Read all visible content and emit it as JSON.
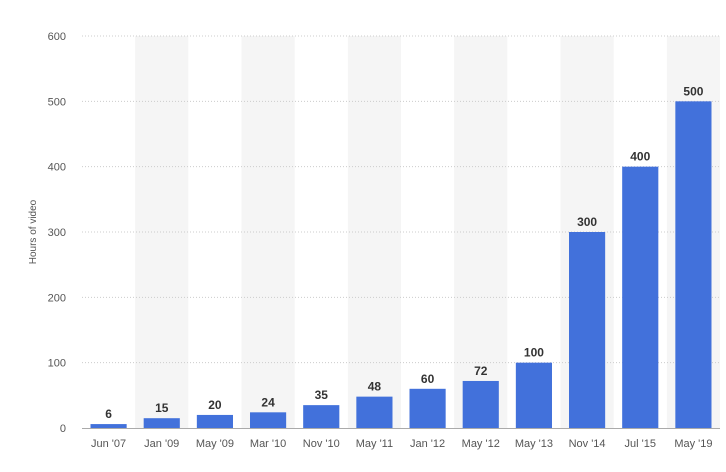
{
  "chart_data": {
    "type": "bar",
    "categories": [
      "Jun '07",
      "Jan '09",
      "May '09",
      "Mar '10",
      "Nov '10",
      "May '11",
      "Jan '12",
      "May '12",
      "May '13",
      "Nov '14",
      "Jul '15",
      "May '19"
    ],
    "values": [
      6,
      15,
      20,
      24,
      35,
      48,
      60,
      72,
      100,
      300,
      400,
      500
    ],
    "title": "",
    "xlabel": "",
    "ylabel": "Hours of video",
    "ylim": [
      0,
      600
    ],
    "yticks": [
      0,
      100,
      200,
      300,
      400,
      500,
      600
    ],
    "grid": true,
    "legend": "none",
    "colors": {
      "bar": "#4271db",
      "alt_band": "#f5f5f5",
      "grid": "#cccccc"
    }
  }
}
